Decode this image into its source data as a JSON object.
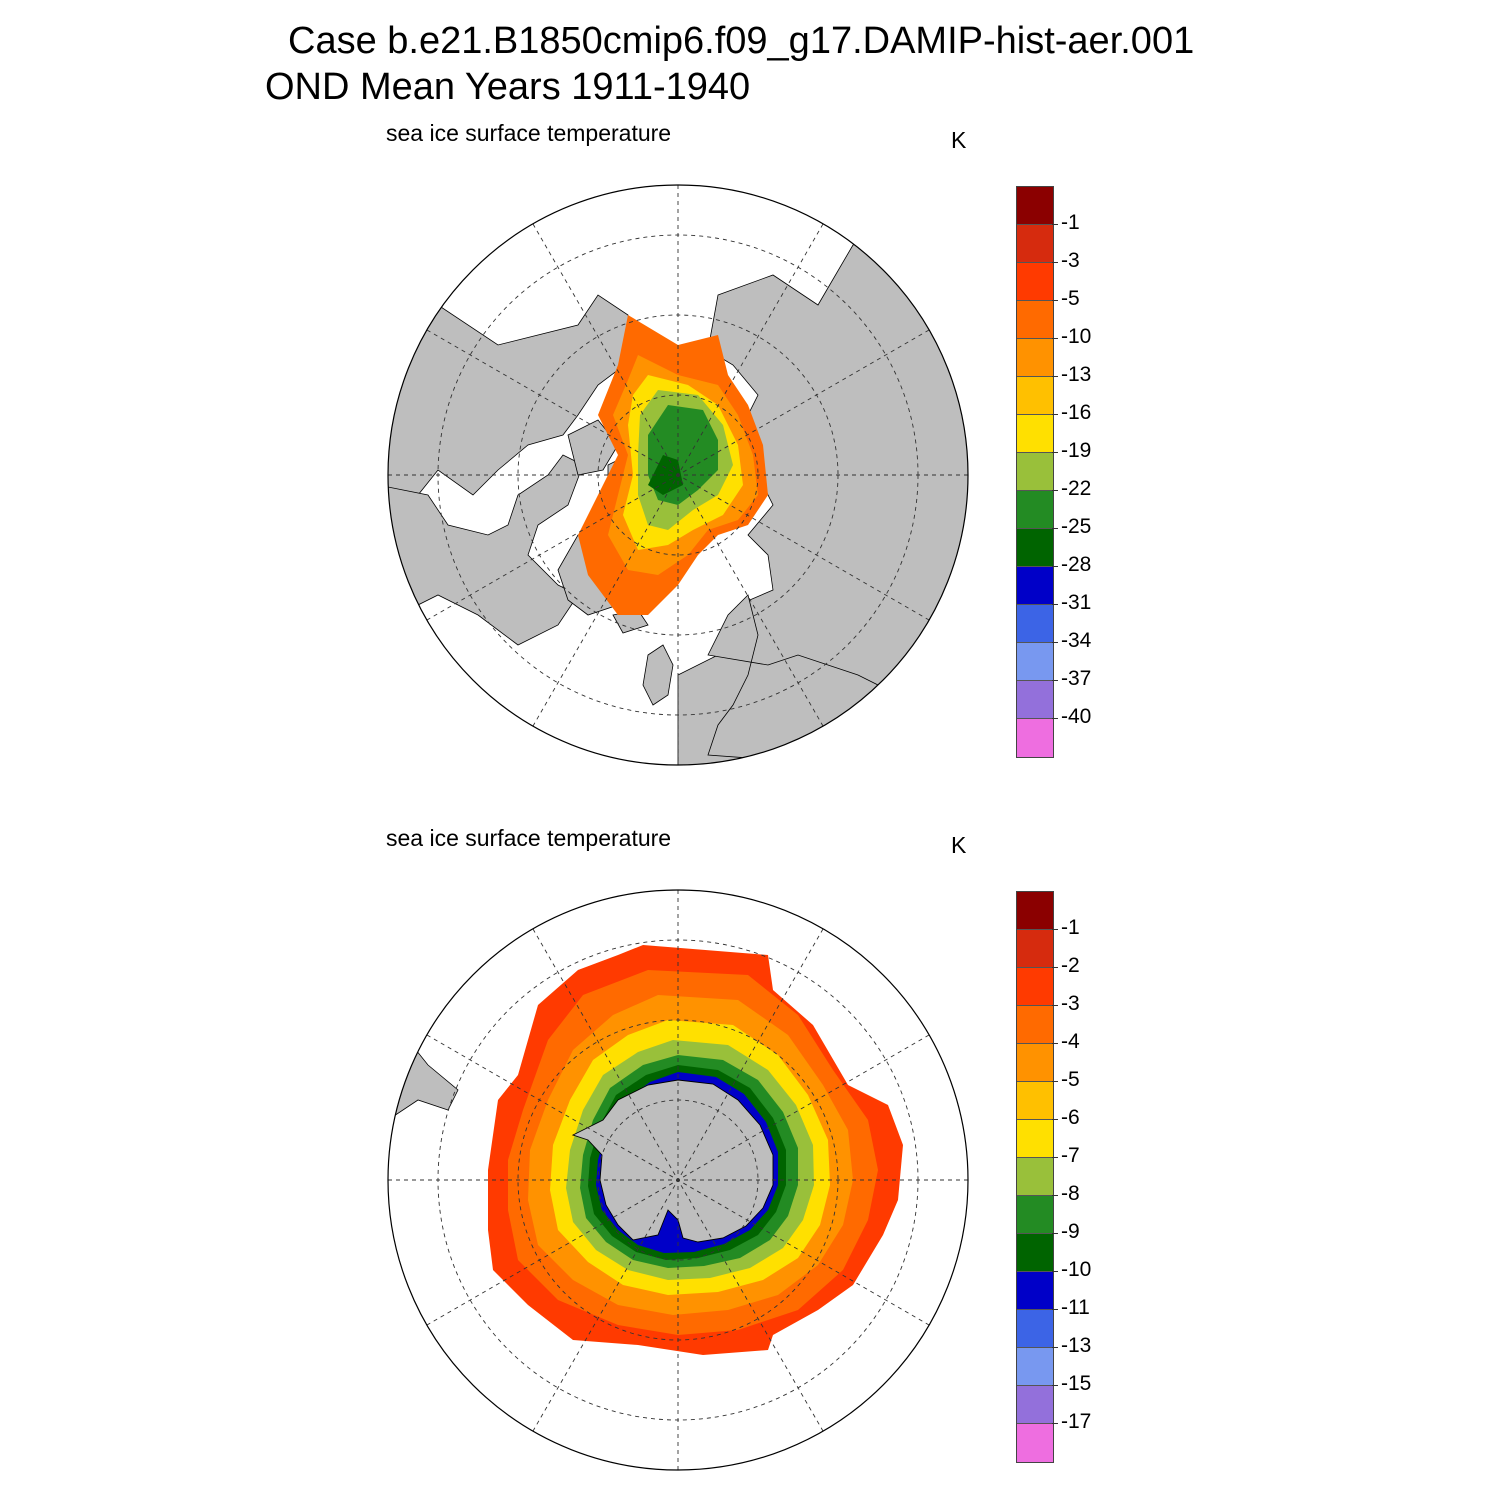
{
  "header": {
    "line1": "Case b.e21.B1850cmip6.f09_g17.DAMIP-hist-aer.001",
    "line2": "OND Mean   Years 1911-1940"
  },
  "colors": {
    "land": "#bebebe",
    "ocean": "#ffffff",
    "palette": [
      "#8b0000",
      "#d62b0e",
      "#ff3a00",
      "#ff6a00",
      "#ff9200",
      "#ffc000",
      "#ffe000",
      "#99c03a",
      "#238b23",
      "#006400",
      "#0000c8",
      "#3c64e6",
      "#7898f0",
      "#9370db",
      "#ee6ee0"
    ]
  },
  "panels": [
    {
      "variable_label": "sea ice surface temperature",
      "units": "K",
      "hemisphere": "north",
      "colorbar_labels": [
        "-1",
        "-3",
        "-5",
        "-10",
        "-13",
        "-16",
        "-19",
        "-22",
        "-25",
        "-28",
        "-31",
        "-34",
        "-37",
        "-40"
      ]
    },
    {
      "variable_label": "sea ice surface temperature",
      "units": "K",
      "hemisphere": "south",
      "colorbar_labels": [
        "-1",
        "-2",
        "-3",
        "-4",
        "-5",
        "-6",
        "-7",
        "-8",
        "-9",
        "-10",
        "-11",
        "-13",
        "-15",
        "-17"
      ]
    }
  ]
}
